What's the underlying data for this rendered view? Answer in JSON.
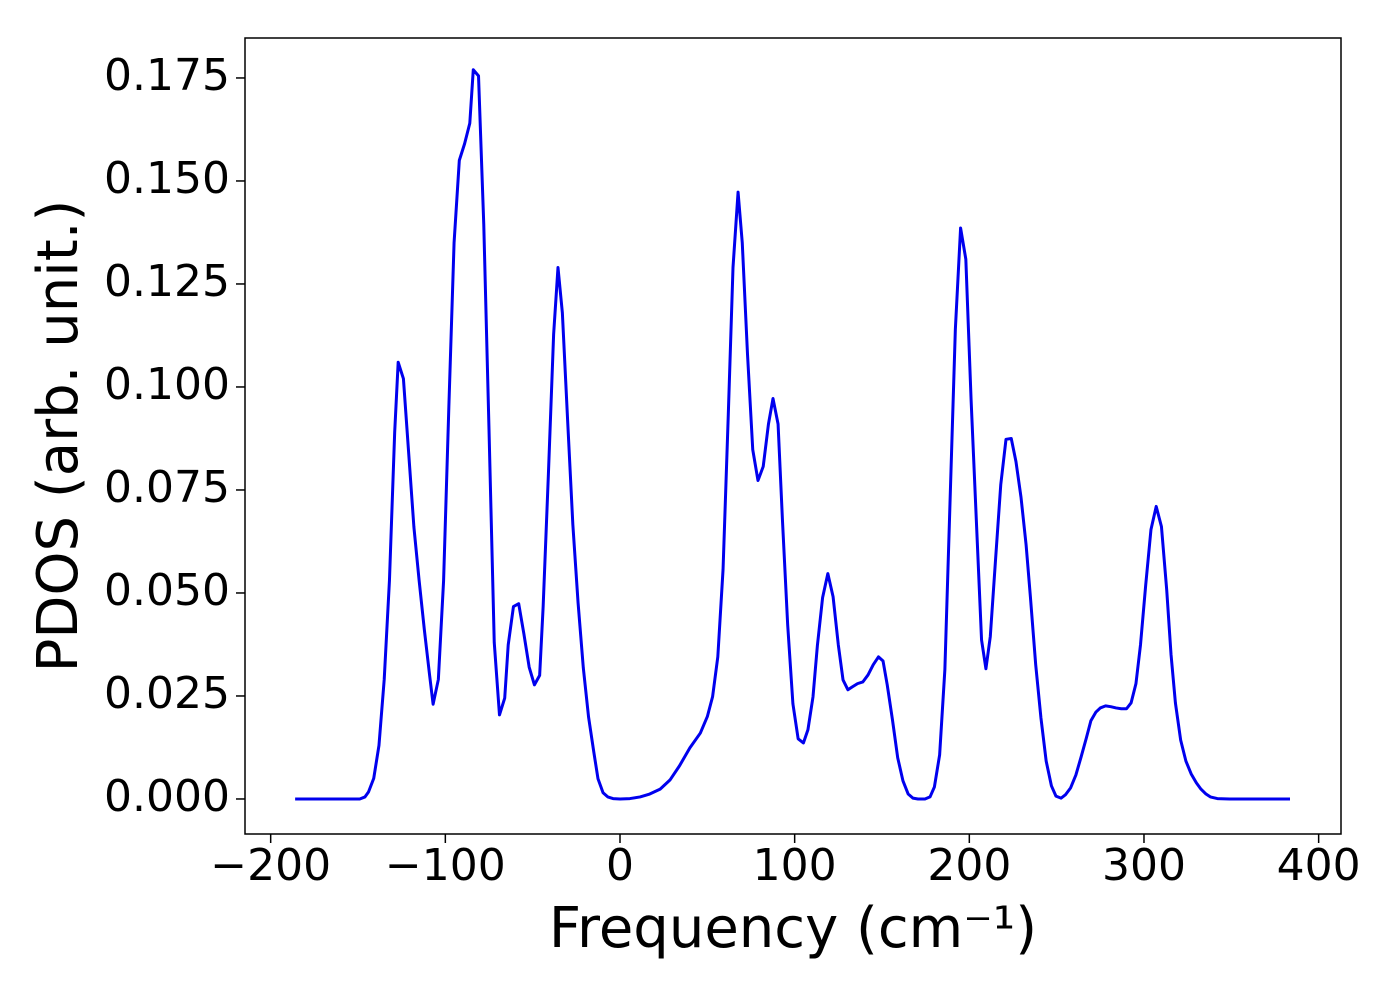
{
  "chart_data": {
    "type": "line",
    "xlabel": "Frequency (cm⁻¹)",
    "ylabel": "PDOS (arb. unit.)",
    "color": "#0000ee",
    "xlim": [
      -214.7,
      412.8
    ],
    "ylim": [
      -0.0085,
      0.1847
    ],
    "xticks": [
      {
        "value": -200,
        "label": "−200"
      },
      {
        "value": -100,
        "label": "−100"
      },
      0,
      100,
      200,
      300,
      400
    ],
    "yticks": [
      {
        "value": 0,
        "label": "0.000"
      },
      {
        "value": 0.025,
        "label": "0.025"
      },
      {
        "value": 0.05,
        "label": "0.050"
      },
      {
        "value": 0.075,
        "label": "0.075"
      },
      {
        "value": 0.1,
        "label": "0.100"
      },
      {
        "value": 0.125,
        "label": "0.125"
      },
      {
        "value": 0.15,
        "label": "0.150"
      },
      {
        "value": 0.175,
        "label": "0.175"
      }
    ],
    "x": [
      -186,
      -149,
      -146,
      -144,
      -141,
      -138,
      -135,
      -132,
      -129,
      -127,
      -124,
      -121,
      -118,
      -115,
      -112,
      -109,
      -107,
      -104,
      -101,
      -98,
      -95,
      -92,
      -89,
      -86,
      -84,
      -81,
      -78,
      -75,
      -72,
      -69,
      -66,
      -64,
      -61,
      -58,
      -55,
      -52,
      -49,
      -46,
      -44,
      -41,
      -38,
      -35.5,
      -33,
      -30,
      -27,
      -24,
      -21,
      -18,
      -15,
      -12.6,
      -9.7,
      -7,
      -4,
      0,
      5.7,
      11.5,
      17,
      23,
      28.6,
      34,
      40,
      46,
      50,
      53,
      56,
      59,
      62,
      64.7,
      67.6,
      70,
      73,
      76,
      79,
      82,
      85,
      87.6,
      90.5,
      93,
      96,
      99,
      102,
      105,
      107.6,
      110.5,
      113,
      116,
      119,
      122,
      125,
      127.7,
      130.5,
      133,
      136,
      139,
      142,
      145,
      148,
      150.6,
      153,
      156,
      159,
      162,
      165,
      167.7,
      170.6,
      174.6,
      177.5,
      180,
      183,
      186,
      189,
      192,
      195,
      198,
      201,
      204,
      207,
      209.5,
      212,
      215,
      218,
      221,
      224,
      226.7,
      229.6,
      232.5,
      235,
      238,
      241,
      244,
      247,
      249.6,
      252.5,
      255,
      258,
      261,
      264,
      267,
      269.6,
      272.5,
      275,
      278,
      281,
      284,
      287,
      290,
      292.6,
      295.4,
      298,
      301,
      304,
      307,
      310,
      313,
      315.5,
      318,
      321,
      324,
      327,
      330,
      332.6,
      335.5,
      338,
      342,
      349,
      383.6
    ],
    "values": [
      0,
      0,
      0.0005,
      0.0017,
      0.005,
      0.013,
      0.029,
      0.053,
      0.089,
      0.106,
      0.102,
      0.084,
      0.066,
      0.053,
      0.041,
      0.03,
      0.023,
      0.029,
      0.053,
      0.095,
      0.135,
      0.155,
      0.159,
      0.164,
      0.177,
      0.1755,
      0.1395,
      0.0897,
      0.038,
      0.0204,
      0.0245,
      0.0374,
      0.0467,
      0.0474,
      0.04,
      0.032,
      0.0277,
      0.03,
      0.0467,
      0.0788,
      0.1128,
      0.129,
      0.118,
      0.092,
      0.0666,
      0.0476,
      0.0318,
      0.0199,
      0.0114,
      0.0049,
      0.0015,
      0.0005,
      0.0001,
      0,
      0.0001,
      0.0005,
      0.0012,
      0.0024,
      0.0046,
      0.008,
      0.0124,
      0.016,
      0.02,
      0.0248,
      0.0345,
      0.0557,
      0.0933,
      0.129,
      0.1473,
      0.135,
      0.108,
      0.0848,
      0.0773,
      0.0807,
      0.091,
      0.0972,
      0.091,
      0.0678,
      0.0423,
      0.0231,
      0.0146,
      0.0136,
      0.0168,
      0.0248,
      0.0372,
      0.0489,
      0.0547,
      0.0491,
      0.0374,
      0.0289,
      0.0265,
      0.0272,
      0.028,
      0.0284,
      0.0301,
      0.0326,
      0.0345,
      0.0335,
      0.0277,
      0.0192,
      0.01,
      0.0044,
      0.0012,
      0.0002,
      0,
      0,
      0.0005,
      0.0029,
      0.0107,
      0.0314,
      0.0727,
      0.114,
      0.1386,
      0.131,
      0.097,
      0.0678,
      0.0386,
      0.0316,
      0.0394,
      0.058,
      0.0763,
      0.0873,
      0.0875,
      0.0819,
      0.0732,
      0.0617,
      0.0489,
      0.0326,
      0.0197,
      0.0092,
      0.0032,
      0.0007,
      0.0002,
      0.001,
      0.0027,
      0.0058,
      0.0102,
      0.0148,
      0.019,
      0.0211,
      0.0221,
      0.0226,
      0.0224,
      0.0221,
      0.0219,
      0.0219,
      0.0233,
      0.028,
      0.0374,
      0.052,
      0.0654,
      0.071,
      0.0661,
      0.0508,
      0.035,
      0.0233,
      0.0143,
      0.0092,
      0.0061,
      0.0039,
      0.0024,
      0.0012,
      0.0005,
      0.0001,
      0,
      0
    ]
  }
}
